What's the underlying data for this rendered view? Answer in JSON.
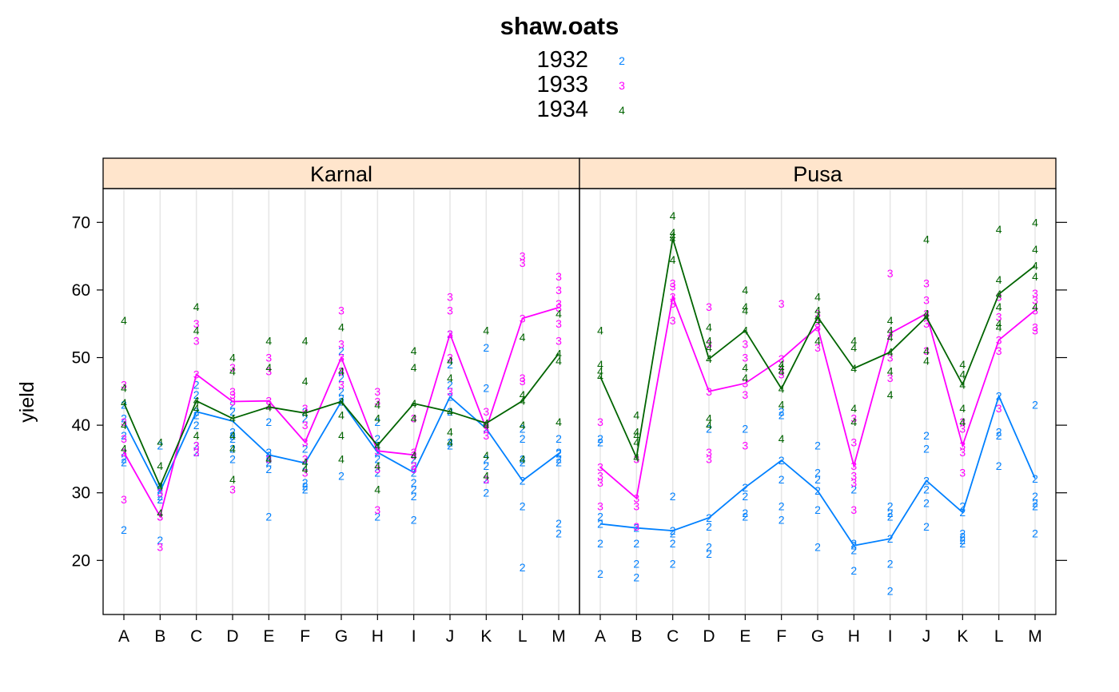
{
  "chart_data": {
    "type": "line",
    "title": "shaw.oats",
    "ylabel": "yield",
    "xlabel": "",
    "ylim": [
      12,
      75
    ],
    "yticks": [
      20,
      30,
      40,
      50,
      60,
      70
    ],
    "categories": [
      "A",
      "B",
      "C",
      "D",
      "E",
      "F",
      "G",
      "H",
      "I",
      "J",
      "K",
      "L",
      "M"
    ],
    "grid": "vertical",
    "legend": {
      "position": "top",
      "entries": [
        {
          "name": "1932",
          "symbol": "2",
          "color": "#0080ff"
        },
        {
          "name": "1933",
          "symbol": "3",
          "color": "#ff00ff"
        },
        {
          "name": "1934",
          "symbol": "4",
          "color": "#006400"
        }
      ]
    },
    "panels": [
      {
        "name": "Karnal",
        "series": [
          {
            "name": "1932",
            "line": [
              40.6,
              30.2,
              42.0,
              40.6,
              35.6,
              34.4,
              43.5,
              36.0,
              33.0,
              44.2,
              39.5,
              31.8,
              35.8
            ],
            "points": [
              [
                43,
                41,
                24.5,
                35,
                34.5,
                36,
                38.5
              ],
              [
                30.5,
                29,
                23,
                30.5,
                29.5,
                31,
                37
              ],
              [
                42,
                44.5,
                46,
                40,
                37,
                41.5,
                36
              ],
              [
                42,
                38.5,
                36.5,
                35,
                38,
                39,
                43
              ],
              [
                35.5,
                40.5,
                34.5,
                33.5,
                26.5,
                35,
                36
              ],
              [
                34,
                36.5,
                31,
                30.5,
                31.5,
                41,
                42
              ],
              [
                43.5,
                48,
                51,
                32.5,
                45,
                44,
                47
              ],
              [
                36,
                38,
                40.5,
                33,
                26.5,
                35,
                37
              ],
              [
                33,
                30.5,
                26,
                31.5,
                29.5,
                34,
                35
              ],
              [
                44.2,
                49,
                53.5,
                42,
                37.5,
                37,
                46
              ],
              [
                39.5,
                51.5,
                45.5,
                30,
                34,
                35,
                32
              ],
              [
                31.8,
                28,
                19,
                34.5,
                38,
                39.5,
                35
              ],
              [
                35.8,
                24,
                25.5,
                38,
                36,
                34.5,
                35
              ]
            ]
          },
          {
            "name": "1933",
            "line": [
              36.0,
              26.5,
              47.5,
              43.5,
              43.6,
              37.5,
              50.0,
              36.2,
              35.6,
              53.5,
              39.5,
              55.8,
              57.4
            ],
            "points": [
              [
                36,
                29,
                38,
                40.5,
                46
              ],
              [
                26.5,
                22,
                26.5,
                30
              ],
              [
                47.5,
                55,
                52.5,
                36,
                37
              ],
              [
                43.5,
                48.5,
                44.5,
                30.5,
                45
              ],
              [
                43.6,
                50,
                48,
                43,
                35
              ],
              [
                37.5,
                42.5,
                40,
                35,
                33
              ],
              [
                50,
                57,
                52,
                48,
                46
              ],
              [
                36.2,
                45,
                43.5,
                33.5,
                27.5
              ],
              [
                35.6,
                41,
                33.5,
                34,
                36
              ],
              [
                53.5,
                59,
                57,
                50,
                45
              ],
              [
                39.5,
                42,
                38.5,
                32,
                40
              ],
              [
                55.8,
                65,
                64,
                47,
                46.5
              ],
              [
                57.4,
                62,
                60,
                58,
                55,
                52.5
              ]
            ]
          },
          {
            "name": "1934",
            "line": [
              43.3,
              31.0,
              43.6,
              41.0,
              42.7,
              41.8,
              43.5,
              37.0,
              43.2,
              42.0,
              40.3,
              43.6,
              50.6
            ],
            "points": [
              [
                43.3,
                55.5,
                45.5,
                40,
                36.5
              ],
              [
                31,
                34,
                37.5,
                27
              ],
              [
                43.6,
                57.5,
                54,
                38.5,
                42.5
              ],
              [
                41,
                50,
                48,
                38.5,
                36.5,
                32
              ],
              [
                42.7,
                52.5,
                48.5,
                35
              ],
              [
                41.8,
                52.5,
                46.5,
                33.5,
                34.5
              ],
              [
                43.5,
                54.5,
                48,
                41.5,
                38.5,
                35
              ],
              [
                37,
                43,
                41,
                34,
                30.5
              ],
              [
                43.2,
                51,
                48.5,
                41,
                35.5
              ],
              [
                42,
                49.5,
                47,
                39,
                37.5
              ],
              [
                40.3,
                54,
                40,
                35.5,
                32.5
              ],
              [
                43.6,
                53,
                44.5,
                40,
                35
              ],
              [
                50.6,
                56.5,
                49.5,
                40.5
              ]
            ]
          }
        ]
      },
      {
        "name": "Pusa",
        "series": [
          {
            "name": "1932",
            "line": [
              25.4,
              24.8,
              24.4,
              26.3,
              30.8,
              34.8,
              30.3,
              22.2,
              23.2,
              31.8,
              27.1,
              44.3,
              32.1
            ],
            "points": [
              [
                25.4,
                38,
                37.5,
                26.5,
                22.5,
                18
              ],
              [
                24.8,
                19.5,
                22.5,
                17.5
              ],
              [
                24.4,
                29.5,
                22.5,
                24,
                19.5
              ],
              [
                26.3,
                39.5,
                25,
                22,
                21
              ],
              [
                30.8,
                39.5,
                29.5,
                26.5,
                27
              ],
              [
                34.8,
                42,
                41.5,
                28,
                26,
                32
              ],
              [
                30.3,
                37,
                33,
                32,
                27.5,
                22
              ],
              [
                22.2,
                30.5,
                21.5,
                18.5,
                22.5
              ],
              [
                23.2,
                28,
                26.5,
                19.5,
                15.5,
                27
              ],
              [
                31.8,
                38.5,
                36.5,
                28.5,
                25,
                30.5
              ],
              [
                27.1,
                28,
                23.5,
                23,
                22.5,
                24
              ],
              [
                44.3,
                39,
                38.5,
                34
              ],
              [
                32.1,
                43,
                24,
                29.5,
                28,
                28.5
              ]
            ]
          },
          {
            "name": "1933",
            "line": [
              33.8,
              29.2,
              59.0,
              45.0,
              46.2,
              49.8,
              54.5,
              34.0,
              53.6,
              56.5,
              37.0,
              52.6,
              57.0
            ],
            "points": [
              [
                33.8,
                40.5,
                32.5,
                31.5,
                28
              ],
              [
                29.2,
                35,
                28,
                25
              ],
              [
                59,
                61,
                60.5,
                58,
                55.5
              ],
              [
                45,
                57.5,
                52,
                36,
                35
              ],
              [
                46.2,
                52,
                50,
                44.5,
                37
              ],
              [
                49.8,
                58,
                48,
                47.5
              ],
              [
                54.5,
                56.5,
                55,
                51.5
              ],
              [
                34,
                41,
                37.5,
                32.5,
                31.5,
                27.5
              ],
              [
                53.6,
                62.5,
                50,
                47
              ],
              [
                56.5,
                61,
                58.5,
                55,
                51
              ],
              [
                37,
                40.5,
                39.5,
                33,
                36
              ],
              [
                52.6,
                59,
                56,
                51,
                42.5
              ],
              [
                57,
                59.5,
                58.5,
                54.5,
                54
              ]
            ]
          },
          {
            "name": "1934",
            "line": [
              47.2,
              35.2,
              67.6,
              49.8,
              54.0,
              45.4,
              56.0,
              48.4,
              50.8,
              56.0,
              46.0,
              59.4,
              63.6
            ],
            "points": [
              [
                47.2,
                54,
                49,
                48
              ],
              [
                35.2,
                38.5,
                37.5,
                41.5,
                39
              ],
              [
                67.6,
                71,
                68.5,
                68,
                64.5
              ],
              [
                49.8,
                54.5,
                52.5,
                51.5,
                41,
                40
              ],
              [
                54,
                60,
                57.5,
                57,
                48.5,
                47
              ],
              [
                45.4,
                49,
                48.5,
                48,
                43,
                38
              ],
              [
                56,
                59,
                57,
                55.5,
                52.5
              ],
              [
                48.4,
                52.5,
                51.5,
                42.5,
                40.5
              ],
              [
                50.8,
                55.5,
                54,
                53,
                48,
                44.5
              ],
              [
                56,
                67.5,
                56.5,
                51,
                49.5
              ],
              [
                46,
                49,
                47.5,
                42.5,
                40.5
              ],
              [
                59.4,
                69,
                61.5,
                57.5,
                55,
                54.5
              ],
              [
                63.6,
                70,
                66,
                62,
                57.5
              ]
            ]
          }
        ]
      }
    ]
  }
}
